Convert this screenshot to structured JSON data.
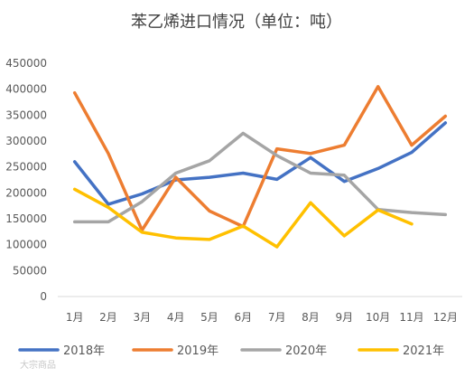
{
  "watermark": "大宗商品",
  "chart_data": {
    "type": "line",
    "title": "苯乙烯进口情况（单位：吨）",
    "xlabel": "",
    "ylabel": "",
    "categories": [
      "1月",
      "2月",
      "3月",
      "4月",
      "5月",
      "6月",
      "7月",
      "8月",
      "9月",
      "10月",
      "11月",
      "12月"
    ],
    "ylim": [
      0,
      450000
    ],
    "yticks": [
      0,
      50000,
      100000,
      150000,
      200000,
      250000,
      300000,
      350000,
      400000,
      450000
    ],
    "grid": false,
    "legend_position": "bottom",
    "series": [
      {
        "name": "2018年",
        "color": "#4472C4",
        "values": [
          260000,
          178000,
          198000,
          225000,
          230000,
          238000,
          226000,
          268000,
          222000,
          247000,
          278000,
          335000
        ]
      },
      {
        "name": "2019年",
        "color": "#ED7D31",
        "values": [
          393000,
          276000,
          128000,
          230000,
          165000,
          135000,
          285000,
          276000,
          292000,
          405000,
          292000,
          348000
        ]
      },
      {
        "name": "2020年",
        "color": "#A5A5A5",
        "values": [
          144000,
          144000,
          183000,
          238000,
          262000,
          315000,
          272000,
          238000,
          234000,
          168000,
          162000,
          158000
        ]
      },
      {
        "name": "2021年",
        "color": "#FFC000",
        "values": [
          207000,
          172000,
          124000,
          113000,
          110000,
          136000,
          96000,
          181000,
          117000,
          167000,
          140000,
          null
        ]
      }
    ]
  }
}
